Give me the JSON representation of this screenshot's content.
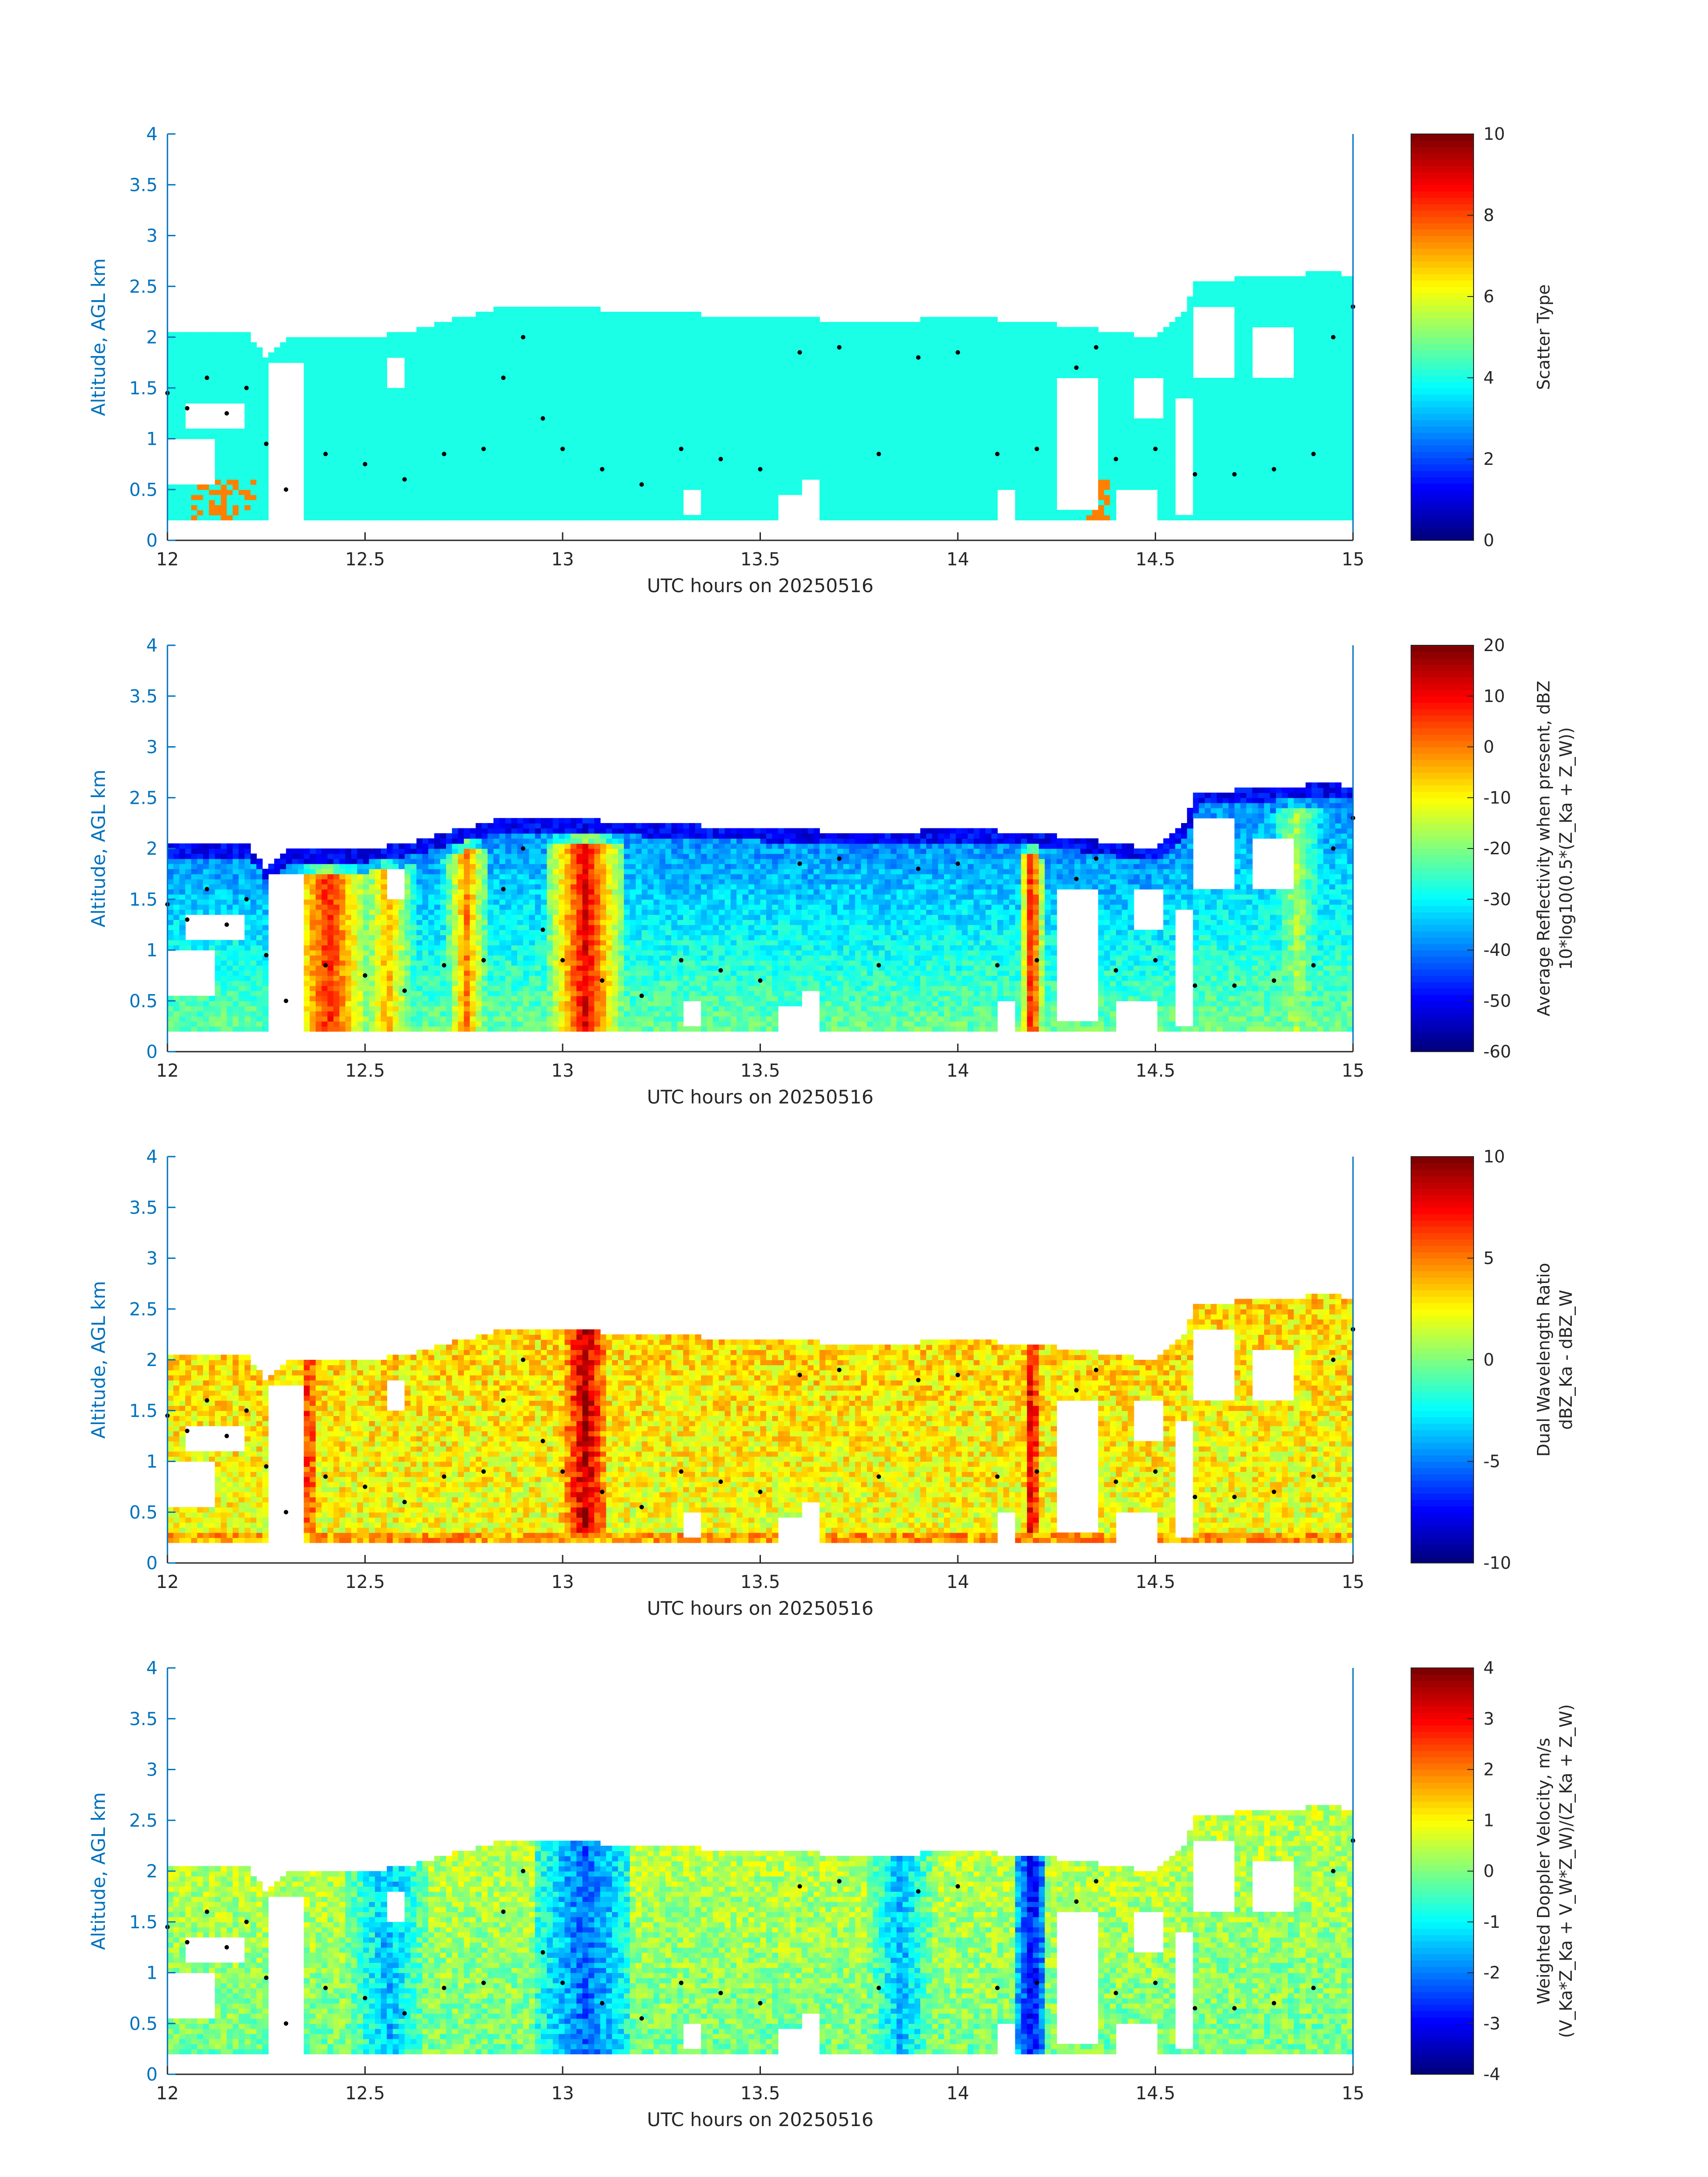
{
  "chart_data": [
    {
      "type": "heatmap",
      "xlabel": "UTC hours on 20250516",
      "ylabel": "Altitude, AGL km",
      "xlim": [
        12,
        15
      ],
      "ylim": [
        0,
        4
      ],
      "x_ticks": [
        "12",
        "12.5",
        "13",
        "13.5",
        "14",
        "14.5",
        "15"
      ],
      "y_ticks": [
        "0",
        "0.5",
        "1",
        "1.5",
        "2",
        "2.5",
        "3",
        "3.5",
        "4"
      ],
      "colorbar": {
        "label_lines": [
          "Scatter Type"
        ],
        "ticks": [
          "0",
          "2",
          "4",
          "6",
          "8",
          "10"
        ],
        "range": [
          0,
          10
        ]
      },
      "field": "scatter",
      "dominant_value": 4,
      "secondary_value": 7.5
    },
    {
      "type": "heatmap",
      "xlabel": "UTC hours on 20250516",
      "ylabel": "Altitude, AGL km",
      "xlim": [
        12,
        15
      ],
      "ylim": [
        0,
        4
      ],
      "x_ticks": [
        "12",
        "12.5",
        "13",
        "13.5",
        "14",
        "14.5",
        "15"
      ],
      "y_ticks": [
        "0",
        "0.5",
        "1",
        "1.5",
        "2",
        "2.5",
        "3",
        "3.5",
        "4"
      ],
      "colorbar": {
        "label_lines": [
          "Average Reflectivity when present, dBZ",
          "10*log10(0.5*(Z_Ka + Z_W))"
        ],
        "ticks": [
          "-60",
          "-50",
          "-40",
          "-30",
          "-20",
          "-10",
          "0",
          "10",
          "20"
        ],
        "range": [
          -60,
          20
        ]
      },
      "field": "reflectivity"
    },
    {
      "type": "heatmap",
      "xlabel": "UTC hours on 20250516",
      "ylabel": "Altitude, AGL km",
      "xlim": [
        12,
        15
      ],
      "ylim": [
        0,
        4
      ],
      "x_ticks": [
        "12",
        "12.5",
        "13",
        "13.5",
        "14",
        "14.5",
        "15"
      ],
      "y_ticks": [
        "0",
        "0.5",
        "1",
        "1.5",
        "2",
        "2.5",
        "3",
        "3.5",
        "4"
      ],
      "colorbar": {
        "label_lines": [
          "Dual Wavelength Ratio",
          "dBZ_Ka - dBZ_W"
        ],
        "ticks": [
          "-10",
          "-5",
          "0",
          "5",
          "10"
        ],
        "range": [
          -10,
          10
        ]
      },
      "field": "dwr"
    },
    {
      "type": "heatmap",
      "xlabel": "UTC hours on 20250516",
      "ylabel": "Altitude, AGL km",
      "xlim": [
        12,
        15
      ],
      "ylim": [
        0,
        4
      ],
      "x_ticks": [
        "12",
        "12.5",
        "13",
        "13.5",
        "14",
        "14.5",
        "15"
      ],
      "y_ticks": [
        "0",
        "0.5",
        "1",
        "1.5",
        "2",
        "2.5",
        "3",
        "3.5",
        "4"
      ],
      "colorbar": {
        "label_lines": [
          "Weighted Doppler Velocity, m/s",
          "(V_Ka*Z_Ka + V_W*Z_W)/(Z_Ka + Z_W)"
        ],
        "ticks": [
          "-4",
          "-3",
          "-2",
          "-1",
          "0",
          "1",
          "2",
          "3",
          "4"
        ],
        "range": [
          -4,
          4
        ]
      },
      "field": "velocity"
    }
  ],
  "cloud_profile": {
    "top_km": [
      [
        12.0,
        2.05
      ],
      [
        12.2,
        2.05
      ],
      [
        12.25,
        1.8
      ],
      [
        12.3,
        2.0
      ],
      [
        12.5,
        2.0
      ],
      [
        12.6,
        2.05
      ],
      [
        12.75,
        2.2
      ],
      [
        12.85,
        2.3
      ],
      [
        13.0,
        2.3
      ],
      [
        13.2,
        2.25
      ],
      [
        13.5,
        2.2
      ],
      [
        13.8,
        2.15
      ],
      [
        14.0,
        2.2
      ],
      [
        14.2,
        2.15
      ],
      [
        14.4,
        2.05
      ],
      [
        14.5,
        2.0
      ],
      [
        14.58,
        2.3
      ],
      [
        14.6,
        2.55
      ],
      [
        14.8,
        2.6
      ],
      [
        14.95,
        2.65
      ],
      [
        15.0,
        2.6
      ]
    ],
    "base_km": 0.18
  },
  "hydrometeor_markers_km": [
    [
      12.0,
      1.45
    ],
    [
      12.05,
      1.3
    ],
    [
      12.1,
      1.6
    ],
    [
      12.15,
      1.25
    ],
    [
      12.2,
      1.5
    ],
    [
      12.25,
      0.95
    ],
    [
      12.3,
      0.5
    ],
    [
      12.4,
      0.85
    ],
    [
      12.5,
      0.75
    ],
    [
      12.6,
      0.6
    ],
    [
      12.7,
      0.85
    ],
    [
      12.8,
      0.9
    ],
    [
      12.85,
      1.6
    ],
    [
      12.9,
      2.0
    ],
    [
      12.95,
      1.2
    ],
    [
      13.0,
      0.9
    ],
    [
      13.1,
      0.7
    ],
    [
      13.2,
      0.55
    ],
    [
      13.3,
      0.9
    ],
    [
      13.4,
      0.8
    ],
    [
      13.5,
      0.7
    ],
    [
      13.6,
      1.85
    ],
    [
      13.7,
      1.9
    ],
    [
      13.8,
      0.85
    ],
    [
      13.9,
      1.8
    ],
    [
      14.0,
      1.85
    ],
    [
      14.1,
      0.85
    ],
    [
      14.2,
      0.9
    ],
    [
      14.3,
      1.7
    ],
    [
      14.35,
      1.9
    ],
    [
      14.4,
      0.8
    ],
    [
      14.5,
      0.9
    ],
    [
      14.6,
      0.65
    ],
    [
      14.7,
      0.65
    ],
    [
      14.8,
      0.7
    ],
    [
      14.9,
      0.85
    ],
    [
      14.95,
      2.0
    ],
    [
      15.0,
      2.3
    ]
  ]
}
